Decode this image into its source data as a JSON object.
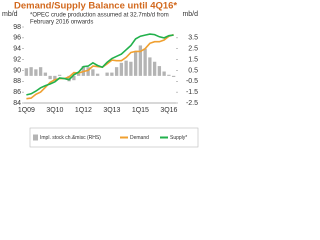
{
  "chart_data": {
    "type": "bar-line",
    "title": "Demand/Supply Balance until 4Q16*",
    "subtitle": [
      "*OPEC crude production assumed at 32.7mb/d from",
      "February 2016 onwards"
    ],
    "y_label": "mb/d",
    "y2_label": "mb/d",
    "categories": [
      "1Q09",
      null,
      null,
      null,
      null,
      null,
      "3Q10",
      null,
      null,
      null,
      null,
      null,
      "1Q12",
      null,
      null,
      null,
      null,
      null,
      "3Q13",
      null,
      null,
      null,
      null,
      null,
      "1Q15",
      null,
      null,
      null,
      null,
      null,
      "3Q16",
      null
    ],
    "ylim": [
      84,
      98
    ],
    "yticks": [
      84,
      86,
      88,
      90,
      92,
      94,
      96,
      98
    ],
    "y2lim": [
      -2.5,
      4.5
    ],
    "y2ticks": [
      -2.5,
      -1.5,
      -0.5,
      0.5,
      1.5,
      2.5,
      3.5
    ],
    "series": [
      {
        "name": "Impl. stock ch.&misc (RHS)",
        "type": "bar",
        "axis": "y2",
        "color": "#b4b4b4",
        "values": [
          0.7,
          0.8,
          0.6,
          0.8,
          0.3,
          -0.3,
          -0.4,
          0.1,
          0,
          -0.5,
          -0.4,
          0.2,
          0.9,
          0.8,
          0.6,
          0.2,
          0,
          0.3,
          0.3,
          0.8,
          1.2,
          1.4,
          1.3,
          2.3,
          2.8,
          2.5,
          1.7,
          1.3,
          0.9,
          0.4,
          0.1,
          -0.1
        ]
      },
      {
        "name": "Demand",
        "type": "line",
        "color": "#f0a030",
        "values": [
          84.8,
          84.9,
          85.6,
          86.0,
          86.9,
          87.8,
          88.3,
          88.5,
          88.5,
          88.8,
          89.6,
          89.5,
          89.8,
          90.0,
          90.8,
          90.7,
          90.6,
          91.2,
          91.9,
          91.8,
          91.8,
          92.4,
          93.3,
          93.5,
          93.5,
          94.0,
          95.0,
          95.3,
          95.3,
          95.6,
          96.3,
          96.6
        ]
      },
      {
        "name": "Supply*",
        "type": "line",
        "color": "#22b14c",
        "values": [
          85.5,
          85.7,
          86.2,
          86.8,
          87.2,
          87.5,
          87.9,
          88.6,
          88.5,
          88.3,
          89.2,
          89.7,
          90.7,
          90.8,
          91.4,
          90.9,
          90.6,
          91.5,
          92.2,
          92.6,
          93.0,
          93.8,
          94.6,
          95.8,
          96.3,
          96.5,
          96.7,
          96.6,
          96.2,
          96.0,
          96.4,
          96.5
        ]
      }
    ],
    "title_color": "#d2691e"
  }
}
